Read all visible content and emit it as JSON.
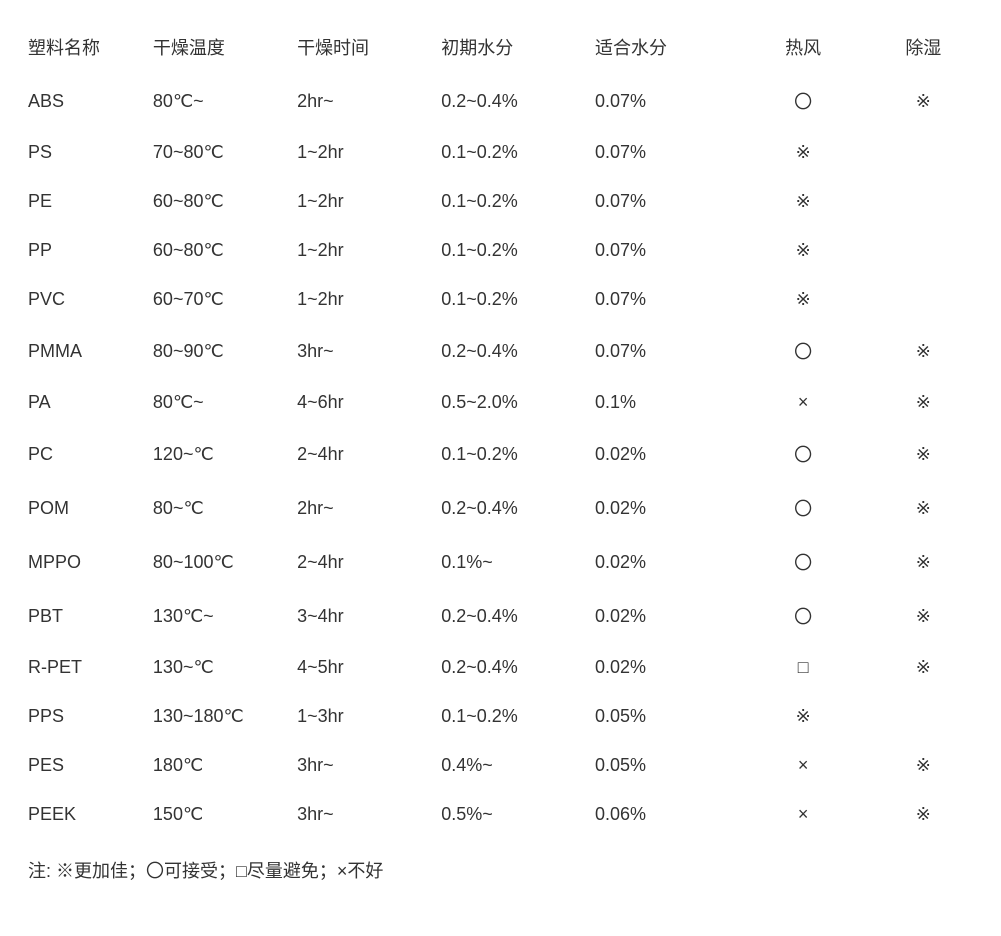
{
  "table": {
    "columns": [
      "塑料名称",
      "干燥温度",
      "干燥时间",
      "初期水分",
      "适合水分",
      "热风",
      "除湿"
    ],
    "rows": [
      [
        "ABS",
        "80℃~",
        "2hr~",
        "0.2~0.4%",
        "0.07%",
        "〇",
        "※"
      ],
      [
        "PS",
        "70~80℃",
        "1~2hr",
        "0.1~0.2%",
        "0.07%",
        "※",
        ""
      ],
      [
        "PE",
        "60~80℃",
        "1~2hr",
        "0.1~0.2%",
        "0.07%",
        "※",
        ""
      ],
      [
        "PP",
        "60~80℃",
        "1~2hr",
        "0.1~0.2%",
        "0.07%",
        "※",
        ""
      ],
      [
        "PVC",
        "60~70℃",
        "1~2hr",
        "0.1~0.2%",
        "0.07%",
        "※",
        ""
      ],
      [
        "PMMA",
        "80~90℃",
        "3hr~",
        "0.2~0.4%",
        "0.07%",
        "〇",
        "※"
      ],
      [
        "PA",
        "80℃~",
        "4~6hr",
        "0.5~2.0%",
        "0.1%",
        "×",
        "※"
      ],
      [
        "PC",
        "120~℃",
        "2~4hr",
        "0.1~0.2%",
        "0.02%",
        "〇",
        "※"
      ],
      [
        "POM",
        "80~℃",
        "2hr~",
        "0.2~0.4%",
        "0.02%",
        "〇",
        "※"
      ],
      [
        "MPPO",
        "80~100℃",
        "2~4hr",
        "0.1%~",
        "0.02%",
        "〇",
        "※"
      ],
      [
        "PBT",
        "130℃~",
        "3~4hr",
        "0.2~0.4%",
        "0.02%",
        "〇",
        "※"
      ],
      [
        "R-PET",
        "130~℃",
        "4~5hr",
        "0.2~0.4%",
        "0.02%",
        "□",
        "※"
      ],
      [
        "PPS",
        "130~180℃",
        "1~3hr",
        "0.1~0.2%",
        "0.05%",
        "※",
        ""
      ],
      [
        "PES",
        "180℃",
        "3hr~",
        "0.4%~",
        "0.05%",
        "×",
        "※"
      ],
      [
        "PEEK",
        "150℃",
        "3hr~",
        "0.5%~",
        "0.06%",
        "×",
        "※"
      ]
    ]
  },
  "note": "注: ※更加佳；〇可接受；□尽量避免；×不好"
}
